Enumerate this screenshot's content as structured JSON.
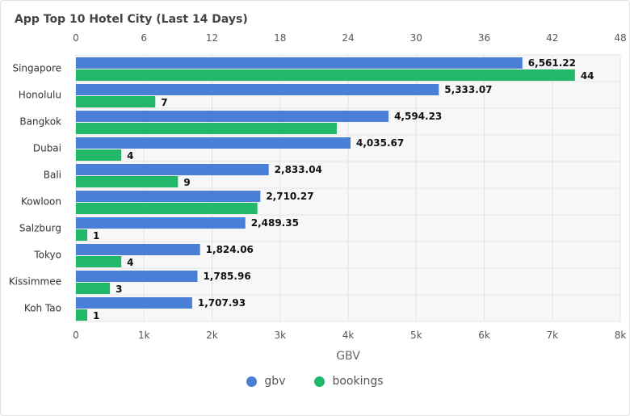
{
  "title": "App Top 10 Hotel City (Last 14 Days)",
  "colors": {
    "gbv": "#4A7FD8",
    "bookings": "#22B86A"
  },
  "chart_data": {
    "type": "bar",
    "orientation": "horizontal",
    "title": "App Top 10 Hotel City (Last 14 Days)",
    "categories": [
      "Singapore",
      "Honolulu",
      "Bangkok",
      "Dubai",
      "Bali",
      "Kowloon",
      "Salzburg",
      "Tokyo",
      "Kissimmee",
      "Koh Tao"
    ],
    "series": [
      {
        "name": "gbv",
        "axis": "bottom",
        "values": [
          6561.22,
          5333.07,
          4594.23,
          4035.67,
          2833.04,
          2710.27,
          2489.35,
          1824.06,
          1785.96,
          1707.93
        ],
        "labels": [
          "6,561.22",
          "5,333.07",
          "4,594.23",
          "4,035.67",
          "2,833.04",
          "2,710.27",
          "2,489.35",
          "1,824.06",
          "1,785.96",
          "1,707.93"
        ]
      },
      {
        "name": "bookings",
        "axis": "top",
        "values": [
          44,
          7,
          23,
          4,
          9,
          16,
          1,
          4,
          3,
          1
        ],
        "labels": [
          "44",
          "7",
          "",
          "4",
          "9",
          "",
          "1",
          "4",
          "3",
          "1"
        ]
      }
    ],
    "bottom_axis": {
      "title": "GBV",
      "range": [
        0,
        8000
      ],
      "ticks": [
        "0",
        "1k",
        "2k",
        "3k",
        "4k",
        "5k",
        "6k",
        "7k",
        "8k"
      ]
    },
    "top_axis": {
      "range": [
        0,
        48
      ],
      "ticks": [
        "0",
        "6",
        "12",
        "18",
        "24",
        "30",
        "36",
        "42",
        "48"
      ]
    },
    "grid": true,
    "legend": {
      "position": "bottom",
      "items": [
        "gbv",
        "bookings"
      ]
    }
  }
}
